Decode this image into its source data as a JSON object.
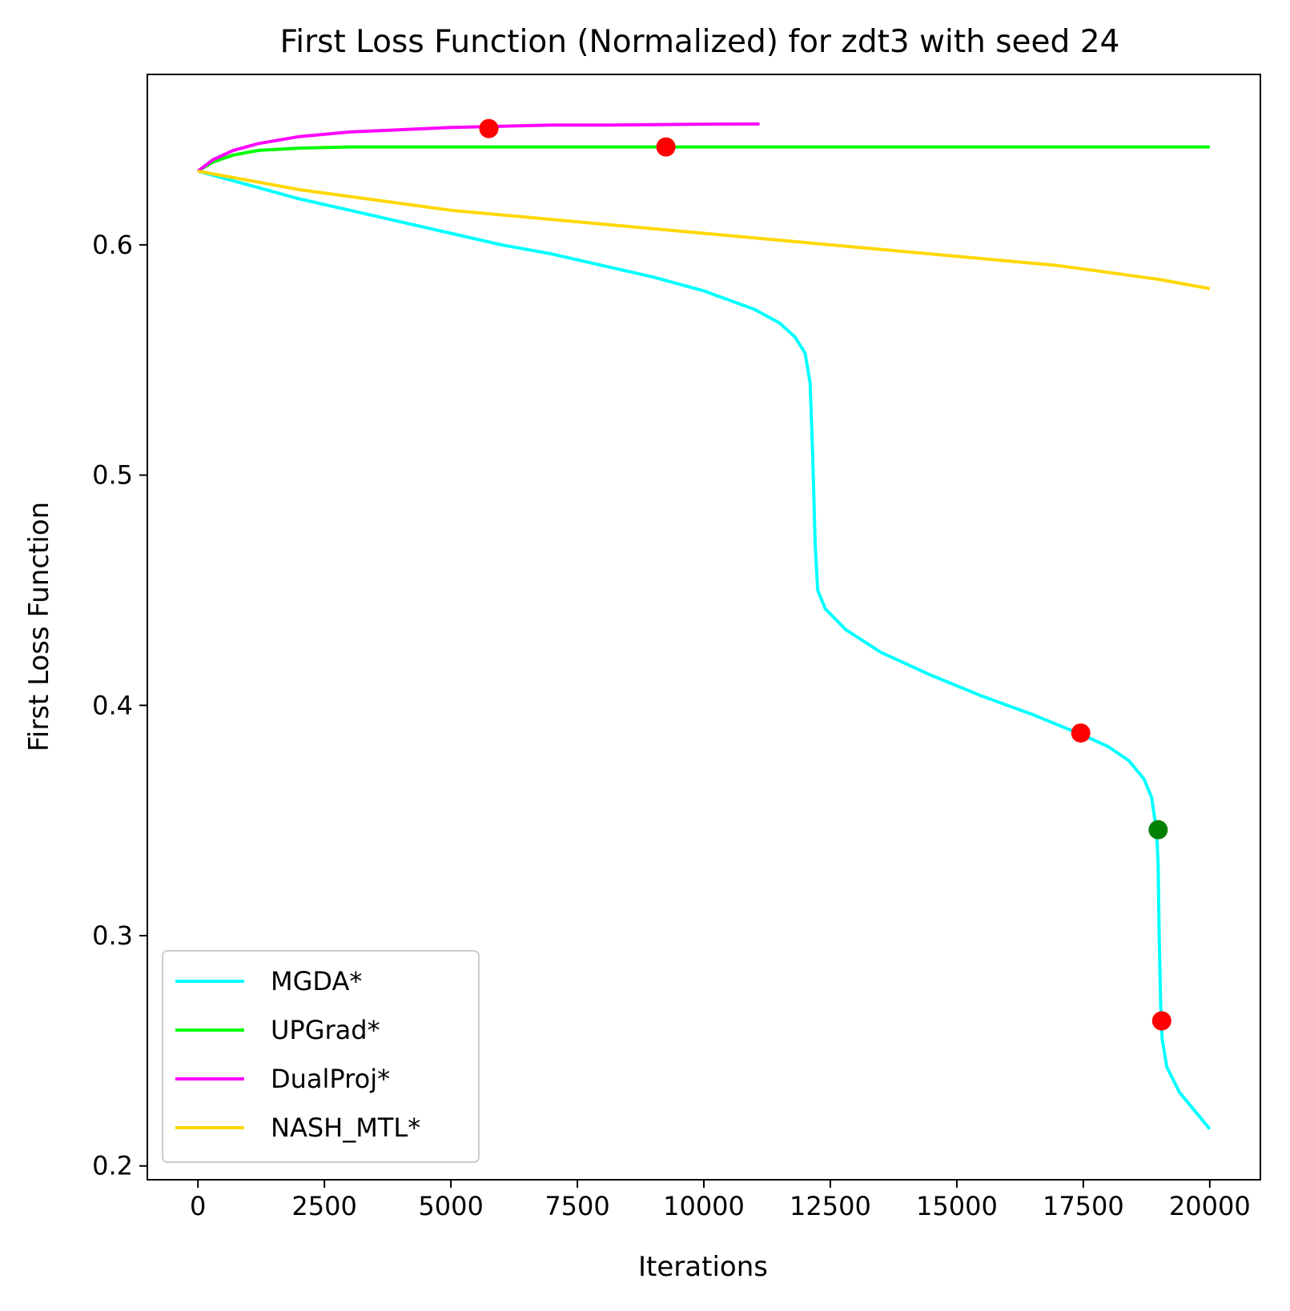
{
  "chart_data": {
    "type": "line",
    "title": "First Loss Function (Normalized) for zdt3 with seed 24",
    "xlabel": "Iterations",
    "ylabel": "First Loss Function",
    "xlim": [
      -1000,
      21000
    ],
    "ylim": [
      0.194,
      0.674
    ],
    "xticks": [
      0,
      2500,
      5000,
      7500,
      10000,
      12500,
      15000,
      17500,
      20000
    ],
    "xtick_labels": [
      "0",
      "2500",
      "5000",
      "7500",
      "10000",
      "12500",
      "15000",
      "17500",
      "20000"
    ],
    "yticks": [
      0.2,
      0.3,
      0.4,
      0.5,
      0.6
    ],
    "ytick_labels": [
      "0.2",
      "0.3",
      "0.4",
      "0.5",
      "0.6"
    ],
    "grid": false,
    "legend": {
      "position": "lower-left"
    },
    "series": [
      {
        "name": "MGDA*",
        "color": "#00ffff",
        "points": [
          [
            0,
            0.632
          ],
          [
            500,
            0.629
          ],
          [
            1000,
            0.626
          ],
          [
            2000,
            0.62
          ],
          [
            3000,
            0.615
          ],
          [
            4000,
            0.61
          ],
          [
            5000,
            0.605
          ],
          [
            6000,
            0.6
          ],
          [
            7000,
            0.596
          ],
          [
            8000,
            0.591
          ],
          [
            9000,
            0.586
          ],
          [
            10000,
            0.58
          ],
          [
            10500,
            0.576
          ],
          [
            11000,
            0.572
          ],
          [
            11500,
            0.566
          ],
          [
            11800,
            0.56
          ],
          [
            12000,
            0.553
          ],
          [
            12100,
            0.54
          ],
          [
            12150,
            0.51
          ],
          [
            12200,
            0.47
          ],
          [
            12250,
            0.45
          ],
          [
            12400,
            0.442
          ],
          [
            12800,
            0.433
          ],
          [
            13500,
            0.423
          ],
          [
            14500,
            0.413
          ],
          [
            15500,
            0.404
          ],
          [
            16500,
            0.396
          ],
          [
            17500,
            0.387
          ],
          [
            18000,
            0.382
          ],
          [
            18400,
            0.376
          ],
          [
            18700,
            0.368
          ],
          [
            18850,
            0.36
          ],
          [
            18950,
            0.345
          ],
          [
            18980,
            0.33
          ],
          [
            19000,
            0.3
          ],
          [
            19030,
            0.27
          ],
          [
            19060,
            0.255
          ],
          [
            19150,
            0.243
          ],
          [
            19400,
            0.232
          ],
          [
            19700,
            0.224
          ],
          [
            20000,
            0.216
          ]
        ]
      },
      {
        "name": "UPGrad*",
        "color": "#00ff00",
        "points": [
          [
            0,
            0.632
          ],
          [
            300,
            0.636
          ],
          [
            700,
            0.639
          ],
          [
            1200,
            0.641
          ],
          [
            2000,
            0.642
          ],
          [
            3000,
            0.6425
          ],
          [
            5000,
            0.6425
          ],
          [
            10000,
            0.6425
          ],
          [
            15000,
            0.6425
          ],
          [
            20000,
            0.6425
          ]
        ]
      },
      {
        "name": "DualProj*",
        "color": "#ff00ff",
        "points": [
          [
            0,
            0.632
          ],
          [
            300,
            0.637
          ],
          [
            700,
            0.641
          ],
          [
            1200,
            0.644
          ],
          [
            2000,
            0.647
          ],
          [
            3000,
            0.649
          ],
          [
            4000,
            0.65
          ],
          [
            5000,
            0.651
          ],
          [
            6000,
            0.6515
          ],
          [
            7000,
            0.652
          ],
          [
            8000,
            0.652
          ],
          [
            9000,
            0.6522
          ],
          [
            10000,
            0.6524
          ],
          [
            11100,
            0.6525
          ]
        ]
      },
      {
        "name": "NASH_MTL*",
        "color": "#ffd700",
        "points": [
          [
            0,
            0.632
          ],
          [
            500,
            0.63
          ],
          [
            1000,
            0.628
          ],
          [
            2000,
            0.624
          ],
          [
            3000,
            0.621
          ],
          [
            4000,
            0.618
          ],
          [
            5000,
            0.615
          ],
          [
            6000,
            0.613
          ],
          [
            7000,
            0.611
          ],
          [
            8000,
            0.609
          ],
          [
            9000,
            0.607
          ],
          [
            10000,
            0.605
          ],
          [
            11000,
            0.603
          ],
          [
            12000,
            0.601
          ],
          [
            13000,
            0.599
          ],
          [
            14000,
            0.597
          ],
          [
            15000,
            0.595
          ],
          [
            16000,
            0.593
          ],
          [
            17000,
            0.591
          ],
          [
            18000,
            0.588
          ],
          [
            19000,
            0.585
          ],
          [
            20000,
            0.581
          ]
        ]
      }
    ],
    "markers": [
      {
        "x": 5750,
        "y": 0.6505,
        "color": "#ff0000"
      },
      {
        "x": 9250,
        "y": 0.6425,
        "color": "#ff0000"
      },
      {
        "x": 17450,
        "y": 0.388,
        "color": "#ff0000"
      },
      {
        "x": 18980,
        "y": 0.346,
        "color": "#008000"
      },
      {
        "x": 19050,
        "y": 0.263,
        "color": "#ff0000"
      }
    ]
  }
}
